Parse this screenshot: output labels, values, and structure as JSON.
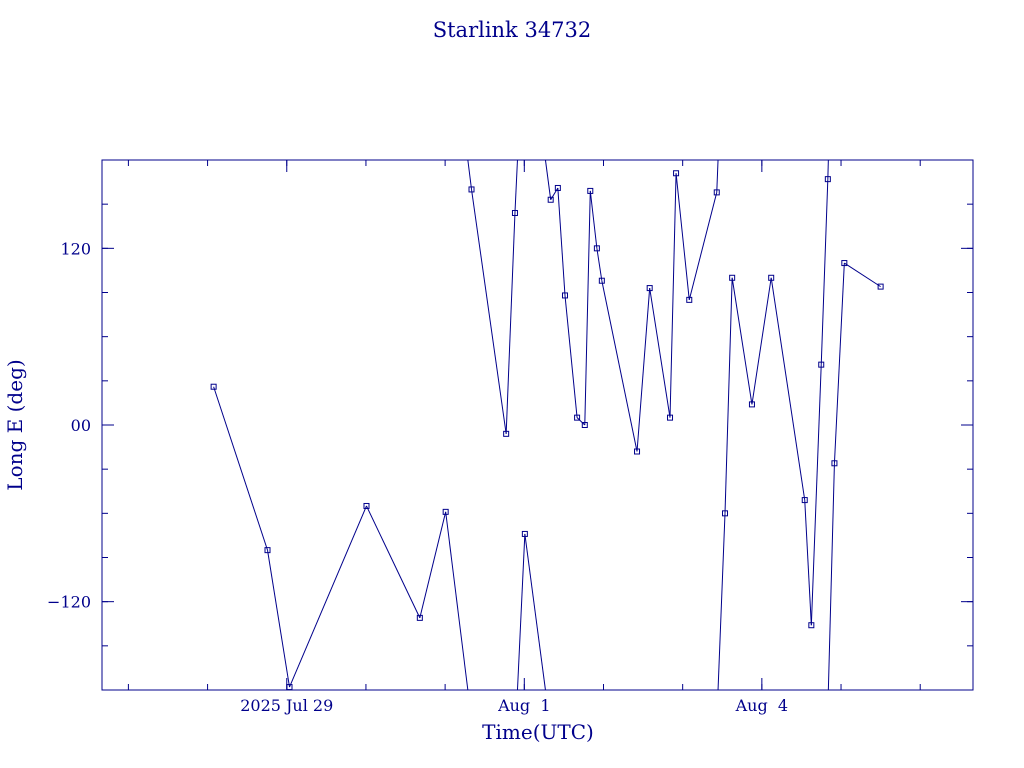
{
  "chart_data": {
    "type": "line",
    "title": "Starlink 34732",
    "xlabel": "Time(UTC)",
    "ylabel": "Long E (deg)",
    "color": "#00008b",
    "grid": false,
    "xlim": [
      "2025-07-26T16:00",
      "2025-08-06T16:00"
    ],
    "ylim": [
      -180,
      180
    ],
    "xticks": [
      {
        "x": "2025-07-29T00:00",
        "label": "2025 Jul 29"
      },
      {
        "x": "2025-08-01T00:00",
        "label": "Aug  1"
      },
      {
        "x": "2025-08-04T00:00",
        "label": "Aug  4"
      }
    ],
    "yticks": [
      {
        "y": 120,
        "label": "120"
      },
      {
        "y": 0,
        "label": "00"
      },
      {
        "y": -120,
        "label": "−120"
      }
    ],
    "series": [
      {
        "points": [
          {
            "x": "2025-07-28T01:50",
            "y": 26
          },
          {
            "x": "2025-07-28T18:10",
            "y": -85
          },
          {
            "x": "2025-07-29T00:50",
            "y": -178
          },
          {
            "x": "2025-07-30T00:10",
            "y": -55
          },
          {
            "x": "2025-07-30T16:20",
            "y": -131
          },
          {
            "x": "2025-07-31T00:10",
            "y": -59
          },
          {
            "x": "2025-07-31T08:00",
            "y": 160
          },
          {
            "x": "2025-07-31T18:30",
            "y": -6
          },
          {
            "x": "2025-07-31T21:10",
            "y": 144
          },
          {
            "x": "2025-08-01T00:10",
            "y": -74
          },
          {
            "x": "2025-08-01T08:00",
            "y": 153
          },
          {
            "x": "2025-08-01T10:10",
            "y": 161
          },
          {
            "x": "2025-08-01T12:20",
            "y": 88
          },
          {
            "x": "2025-08-01T16:00",
            "y": 5
          },
          {
            "x": "2025-08-01T18:20",
            "y": 0
          },
          {
            "x": "2025-08-01T20:00",
            "y": 159
          },
          {
            "x": "2025-08-01T22:00",
            "y": 120
          },
          {
            "x": "2025-08-01T23:30",
            "y": 98
          },
          {
            "x": "2025-08-02T10:10",
            "y": -18
          },
          {
            "x": "2025-08-02T14:00",
            "y": 93
          },
          {
            "x": "2025-08-02T20:10",
            "y": 5
          },
          {
            "x": "2025-08-02T22:00",
            "y": 171
          },
          {
            "x": "2025-08-03T02:00",
            "y": 85
          },
          {
            "x": "2025-08-03T10:20",
            "y": 158
          },
          {
            "x": "2025-08-03T12:50",
            "y": -60
          },
          {
            "x": "2025-08-03T15:00",
            "y": 100
          },
          {
            "x": "2025-08-03T21:00",
            "y": 14
          },
          {
            "x": "2025-08-04T02:50",
            "y": 100
          },
          {
            "x": "2025-08-04T13:00",
            "y": -51
          },
          {
            "x": "2025-08-04T15:00",
            "y": -136
          },
          {
            "x": "2025-08-04T18:00",
            "y": 41
          },
          {
            "x": "2025-08-04T20:00",
            "y": 167
          },
          {
            "x": "2025-08-04T22:00",
            "y": -26
          },
          {
            "x": "2025-08-05T01:00",
            "y": 110
          },
          {
            "x": "2025-08-05T12:00",
            "y": 94
          }
        ]
      }
    ]
  }
}
